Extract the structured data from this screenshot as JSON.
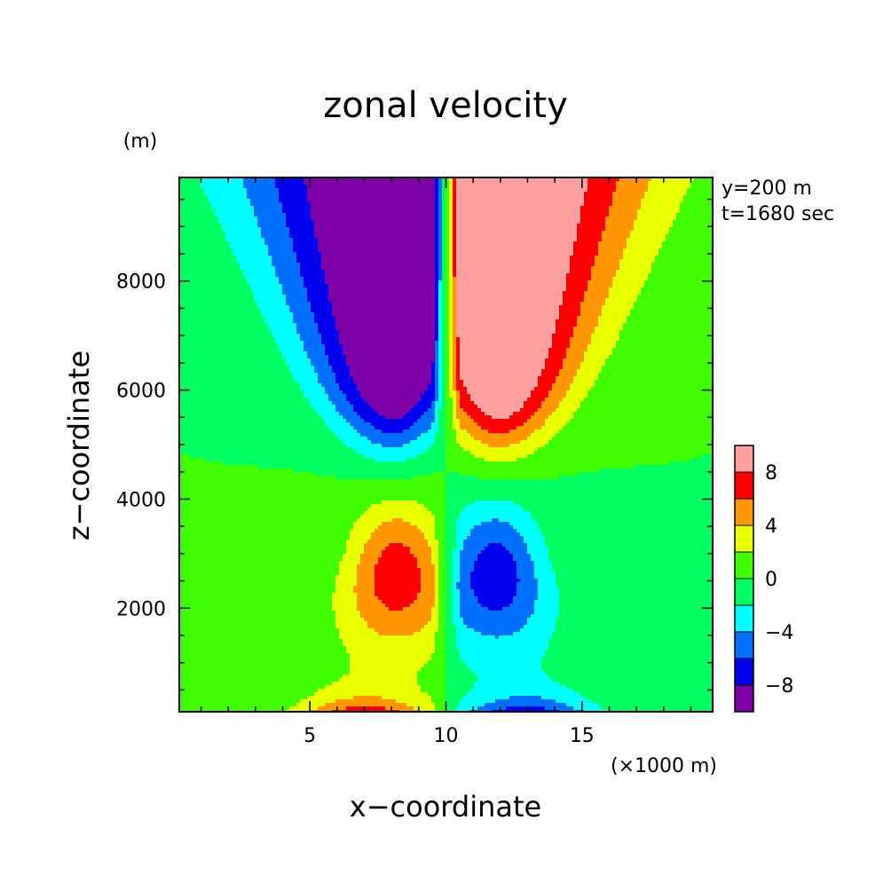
{
  "chart_data": {
    "type": "heatmap",
    "title": "zonal velocity",
    "xlabel": "x−coordinate",
    "ylabel": "z−coordinate",
    "x_unit": "(×1000 m)",
    "y_unit": "(m)",
    "annotations": [
      "y=200 m",
      "t=1680 sec"
    ],
    "xlim": [
      0.2,
      19.8
    ],
    "ylim": [
      100,
      9900
    ],
    "x_ticks": [
      5,
      10,
      15
    ],
    "x_tick_labels": [
      "5",
      "10",
      "15"
    ],
    "y_ticks": [
      2000,
      4000,
      6000,
      8000
    ],
    "y_tick_labels": [
      "2000",
      "4000",
      "6000",
      "8000"
    ],
    "colorbar": {
      "levels": [
        -10,
        -8,
        -6,
        -4,
        -2,
        0,
        2,
        4,
        6,
        8,
        10
      ],
      "colors": [
        "#7c00a6",
        "#0000f0",
        "#0070ff",
        "#00ffff",
        "#00ff60",
        "#40ff00",
        "#e8ff00",
        "#ff9800",
        "#ff0000",
        "#ffa0a0"
      ],
      "tick_values": [
        -8,
        -4,
        0,
        4,
        8
      ],
      "tick_labels": [
        "−8",
        "−4",
        "0",
        "4",
        "8"
      ]
    },
    "field": {
      "description_source": "antisymmetric about x=10 (x in units of 1000 m)",
      "features": [
        {
          "x": 8.0,
          "z": 9800,
          "value": -10
        },
        {
          "x": 8.0,
          "z": 7000,
          "value": -10
        },
        {
          "x": 12.0,
          "z": 9800,
          "value": 10
        },
        {
          "x": 12.0,
          "z": 7000,
          "value": 10
        },
        {
          "x": 8.2,
          "z": 2700,
          "value": 7
        },
        {
          "x": 11.8,
          "z": 2700,
          "value": -7
        },
        {
          "x": 7.5,
          "z": 150,
          "value": 9
        },
        {
          "x": 12.5,
          "z": 150,
          "value": -9
        }
      ]
    }
  }
}
